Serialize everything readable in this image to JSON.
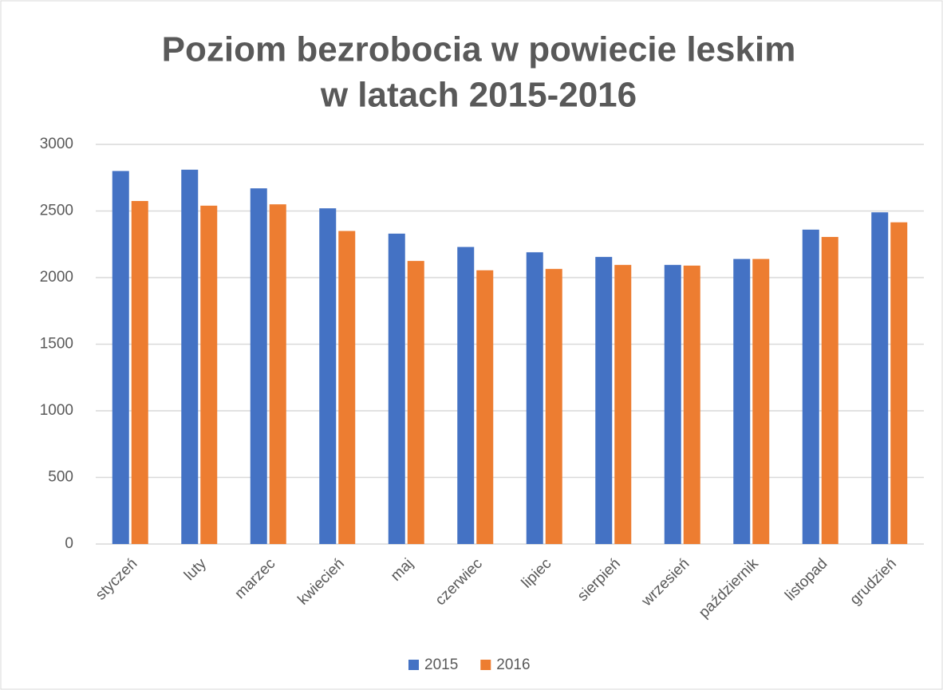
{
  "chart_data": {
    "type": "bar",
    "title": [
      "Poziom bezrobocia w powiecie leskim",
      "w latach 2015-2016"
    ],
    "categories": [
      "styczeń",
      "luty",
      "marzec",
      "kwiecień",
      "maj",
      "czerwiec",
      "lipiec",
      "sierpień",
      "wrzesień",
      "październik",
      "listopad",
      "grudzień"
    ],
    "series": [
      {
        "name": "2015",
        "color": "#4472c4",
        "values": [
          2800,
          2810,
          2670,
          2520,
          2330,
          2230,
          2190,
          2155,
          2095,
          2140,
          2360,
          2490
        ]
      },
      {
        "name": "2016",
        "color": "#ed7d31",
        "values": [
          2575,
          2540,
          2550,
          2350,
          2125,
          2055,
          2065,
          2095,
          2090,
          2140,
          2305,
          2415
        ]
      }
    ],
    "ylim": [
      0,
      3000
    ],
    "yticks": [
      0,
      500,
      1000,
      1500,
      2000,
      2500,
      3000
    ],
    "grid": true,
    "legend": "bottom"
  }
}
